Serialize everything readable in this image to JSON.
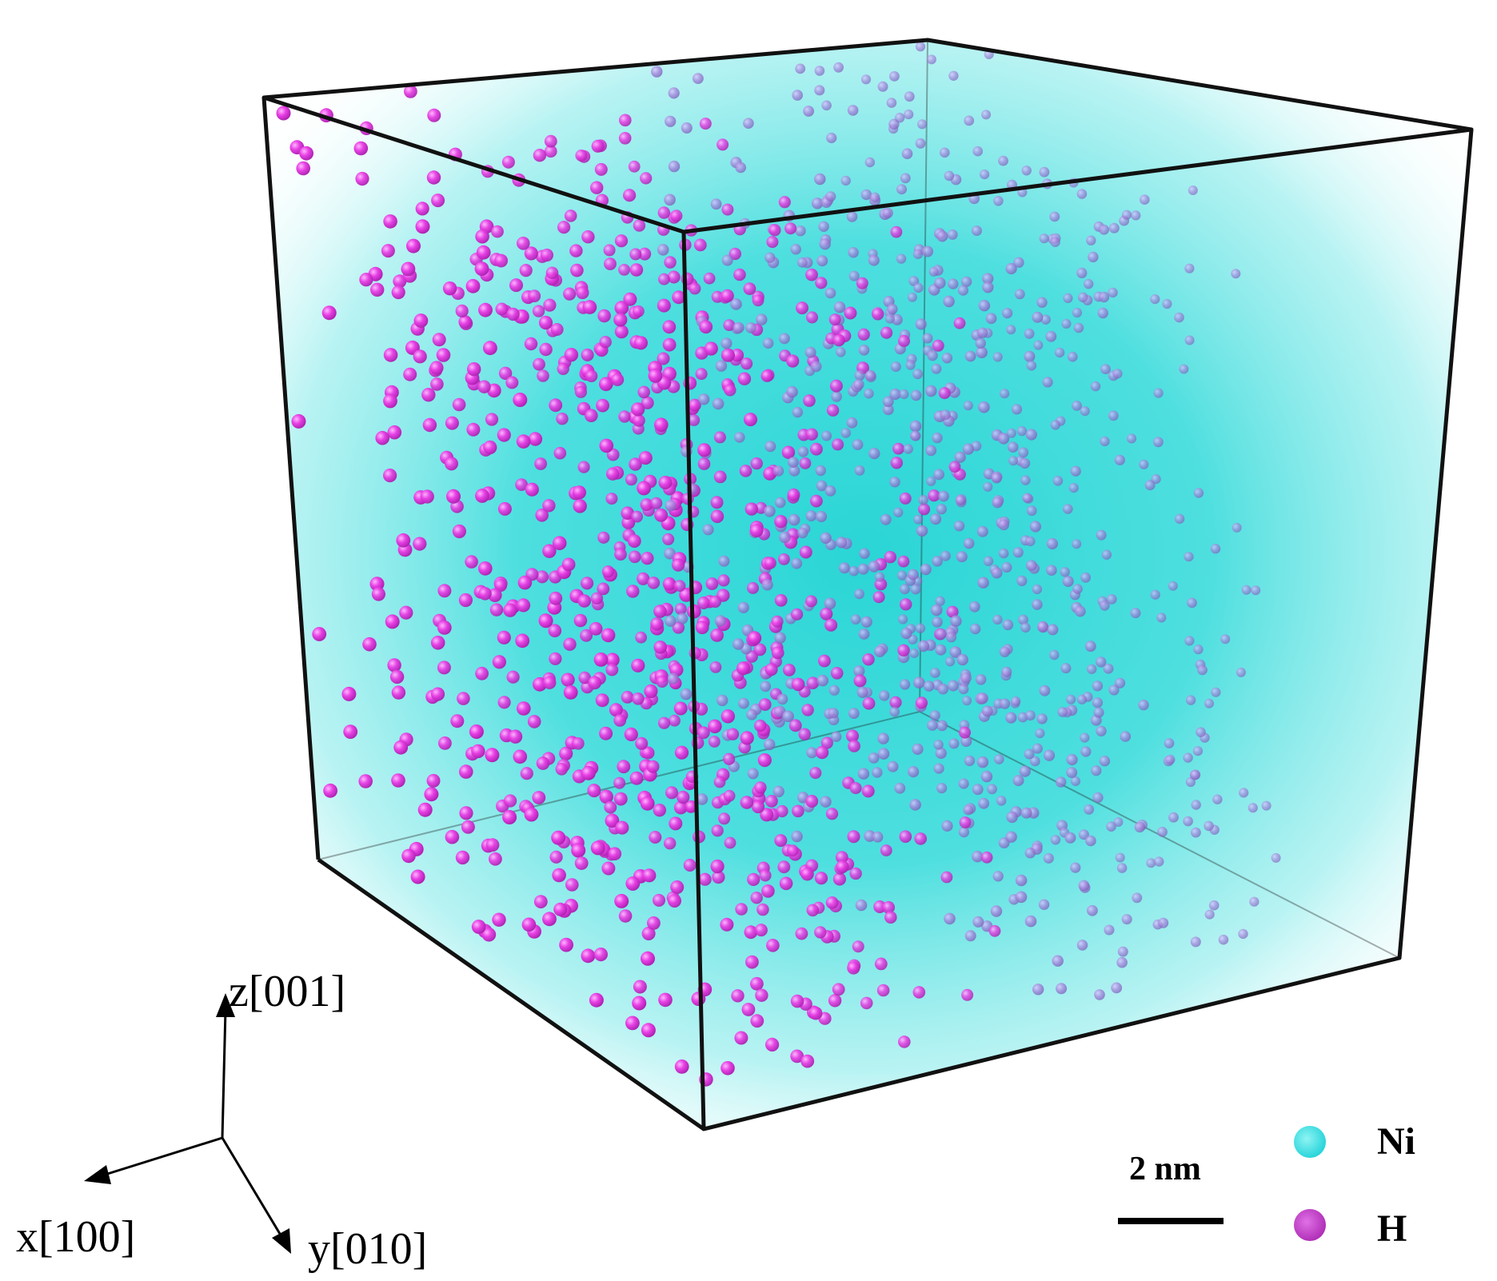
{
  "axes": {
    "x_label": "x[100]",
    "y_label": "y[010]",
    "z_label": "z[001]"
  },
  "scale_bar": {
    "label": "2 nm"
  },
  "legend": [
    {
      "label": "Ni",
      "color": "#22dede"
    },
    {
      "label": "H",
      "color": "#c23cc8"
    }
  ],
  "colors": {
    "nickel_fill": "#22d6d6",
    "hydrogen": "#e23be0",
    "hydrogen_shaded": "#a47cd8",
    "box_edge": "#111111"
  }
}
